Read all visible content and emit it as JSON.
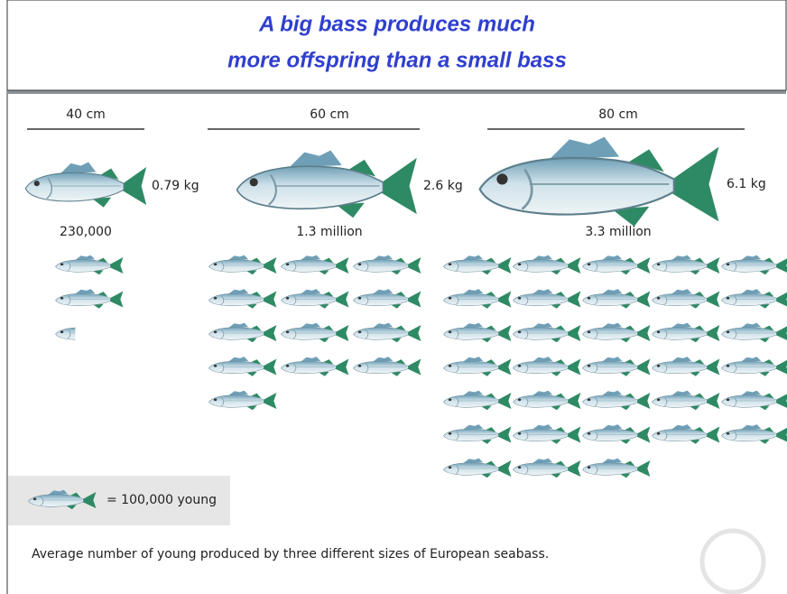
{
  "chart_data": {
    "type": "pictogram",
    "title": [
      "A big bass produces much",
      "more offspring than a small bass"
    ],
    "categories": [
      "40 cm",
      "60 cm",
      "80 cm"
    ],
    "weights": [
      0.79,
      2.6,
      6.1
    ],
    "weight_labels": [
      "0.79 kg",
      "2.6 kg",
      "6.1 kg"
    ],
    "values": [
      230000,
      1300000,
      3300000
    ],
    "value_labels": [
      "230,000",
      "1.3 million",
      "3.3 million"
    ],
    "unit": 100000,
    "legend_label": "= 100,000 young",
    "caption": "Average number of young produced by three different sizes of European seabass.",
    "colors": {
      "body": "#b9d3df",
      "back": "#6f9fb6",
      "tail": "#2e8a64",
      "title": "#2f3fcf"
    }
  }
}
